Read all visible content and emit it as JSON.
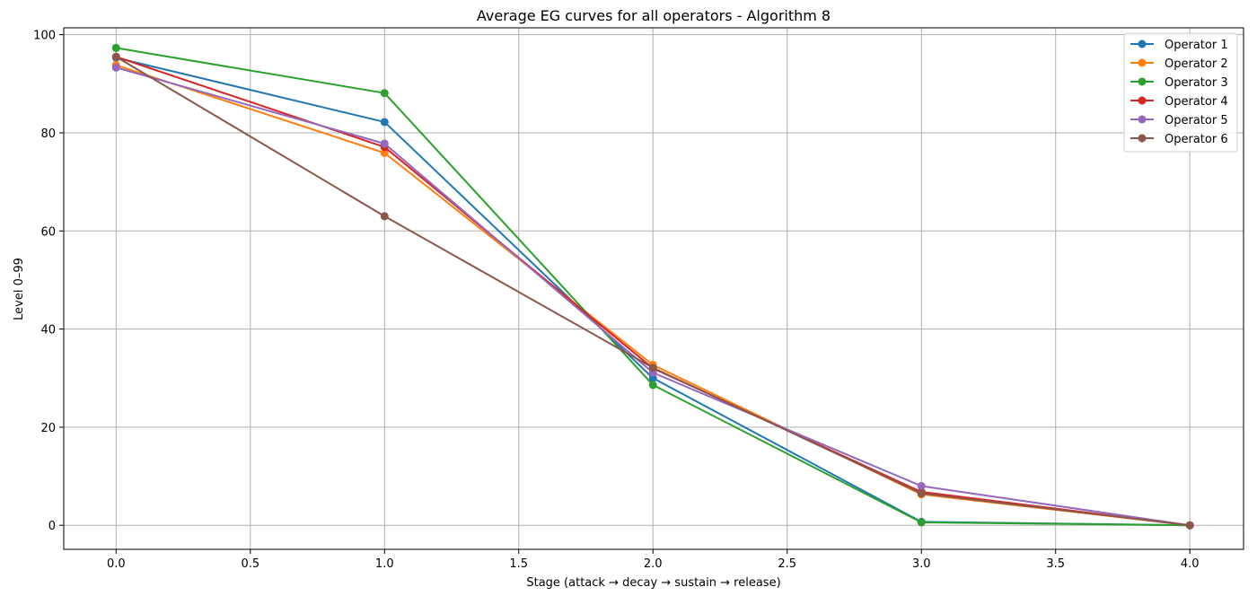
{
  "chart_data": {
    "type": "line",
    "title": "Average EG curves for all operators - Algorithm 8",
    "xlabel": "Stage (attack → decay → sustain → release)",
    "ylabel": "Level 0–99",
    "x": [
      0,
      1,
      2,
      3,
      4
    ],
    "xlim": [
      -0.195,
      4.2
    ],
    "ylim": [
      -4.9,
      101.4
    ],
    "xticks": [
      0.0,
      0.5,
      1.0,
      1.5,
      2.0,
      2.5,
      3.0,
      3.5,
      4.0
    ],
    "xtick_labels": [
      "0.0",
      "0.5",
      "1.0",
      "1.5",
      "2.0",
      "2.5",
      "3.0",
      "3.5",
      "4.0"
    ],
    "yticks": [
      0,
      20,
      40,
      60,
      80,
      100
    ],
    "ytick_labels": [
      "0",
      "20",
      "40",
      "60",
      "80",
      "100"
    ],
    "grid": true,
    "legend_position": "top-right",
    "series": [
      {
        "name": "Operator 1",
        "color": "#1f77b4",
        "values": [
          95.3,
          82.2,
          30.0,
          0.7,
          0.0
        ]
      },
      {
        "name": "Operator 2",
        "color": "#ff7f0e",
        "values": [
          93.8,
          75.9,
          32.7,
          6.3,
          0.0
        ]
      },
      {
        "name": "Operator 3",
        "color": "#2ca02c",
        "values": [
          97.3,
          88.1,
          28.6,
          0.6,
          0.0
        ]
      },
      {
        "name": "Operator 4",
        "color": "#d62728",
        "values": [
          95.5,
          77.1,
          32.0,
          6.8,
          0.0
        ]
      },
      {
        "name": "Operator 5",
        "color": "#9467bd",
        "values": [
          93.3,
          77.8,
          31.1,
          8.0,
          0.0
        ]
      },
      {
        "name": "Operator 6",
        "color": "#8c564b",
        "values": [
          95.5,
          63.0,
          32.1,
          6.5,
          0.0
        ]
      }
    ]
  }
}
